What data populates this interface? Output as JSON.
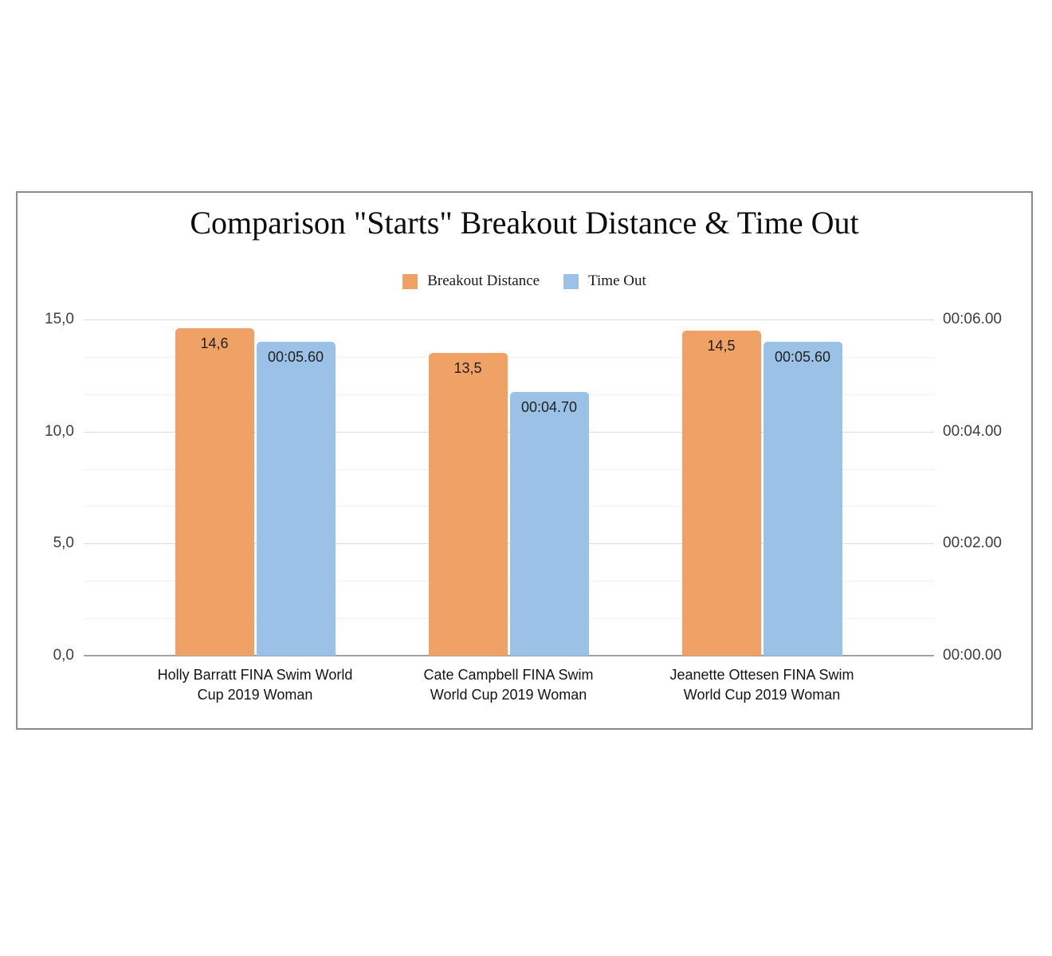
{
  "chart_data": {
    "type": "bar",
    "title": "Comparison \"Starts\" Breakout Distance & Time Out",
    "legend_position": "top",
    "grid": true,
    "categories": [
      "Holly Barratt FINA Swim World Cup 2019 Woman",
      "Cate Campbell FINA Swim World Cup 2019 Woman",
      "Jeanette Ottesen FINA Swim World Cup 2019 Woman"
    ],
    "categories_display": [
      "Holly Barratt FINA Swim World\nCup 2019 Woman",
      "Cate Campbell FINA Swim\nWorld Cup 2019 Woman",
      "Jeanette Ottesen FINA Swim\nWorld Cup 2019 Woman"
    ],
    "series": [
      {
        "name": "Breakout Distance",
        "color": "#F0A266",
        "axis": "left",
        "values": [
          14.6,
          13.5,
          14.5
        ],
        "labels": [
          "14,6",
          "13,5",
          "14,5"
        ]
      },
      {
        "name": "Time Out",
        "color": "#9BC2E6",
        "axis": "right",
        "values": [
          5.6,
          4.7,
          5.6
        ],
        "labels": [
          "00:05.60",
          "00:04.70",
          "00:05.60"
        ]
      }
    ],
    "left_axis": {
      "min": 0,
      "max": 15,
      "ticks": [
        {
          "value": 15,
          "label": "15,0"
        },
        {
          "value": 10,
          "label": "10,0"
        },
        {
          "value": 5,
          "label": "5,0"
        },
        {
          "value": 0,
          "label": "0,0"
        }
      ]
    },
    "right_axis": {
      "min": 0,
      "max": 6,
      "ticks": [
        {
          "value": 6,
          "label": "00:06.00"
        },
        {
          "value": 4,
          "label": "00:04.00"
        },
        {
          "value": 2,
          "label": "00:02.00"
        },
        {
          "value": 0,
          "label": "00:00.00"
        }
      ]
    }
  }
}
